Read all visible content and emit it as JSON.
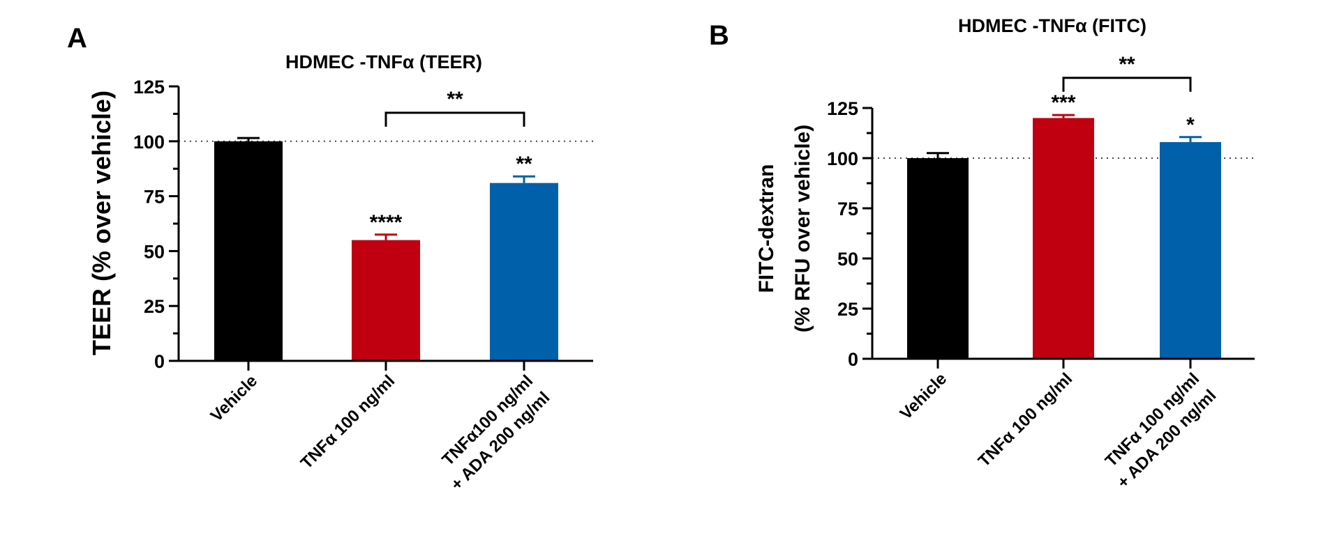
{
  "chart_data": [
    {
      "panel": "A",
      "type": "bar",
      "title": "HDMEC -TNFα (TEER)",
      "ylabel": [
        "TEER (% over vehicle)"
      ],
      "ylim": [
        0,
        125
      ],
      "yticks": [
        0,
        25,
        50,
        75,
        100,
        125
      ],
      "reference_line": 100,
      "categories": [
        [
          "Vehicle"
        ],
        [
          "TNFα 100 ng/ml"
        ],
        [
          "TNFα100 ng/ml",
          "+ ADA 200 ng/ml"
        ]
      ],
      "values": [
        100,
        55,
        81
      ],
      "errors": [
        1.5,
        2.5,
        3
      ],
      "colors": [
        "#000000",
        "#c00010",
        "#0060aa"
      ],
      "significance": [
        "",
        "****",
        "**"
      ],
      "comparisons": [
        {
          "from": 1,
          "to": 2,
          "label": "**",
          "y": 113
        }
      ]
    },
    {
      "panel": "B",
      "type": "bar",
      "title": "HDMEC -TNFα (FITC)",
      "ylabel": [
        "FITC-dextran",
        "(% RFU over vehicle)"
      ],
      "ylim": [
        0,
        125
      ],
      "yticks": [
        0,
        25,
        50,
        75,
        100,
        125
      ],
      "reference_line": 100,
      "categories": [
        [
          "Vehicle"
        ],
        [
          "TNFα 100 ng/ml"
        ],
        [
          "TNFα 100 ng/ml",
          "+ ADA 200 ng/ml"
        ]
      ],
      "values": [
        100,
        120,
        108
      ],
      "errors": [
        2.5,
        1.5,
        2.5
      ],
      "colors": [
        "#000000",
        "#c00010",
        "#0060aa"
      ],
      "significance": [
        "",
        "***",
        "*"
      ],
      "comparisons": [
        {
          "from": 1,
          "to": 2,
          "label": "**",
          "y": 140
        }
      ]
    }
  ]
}
